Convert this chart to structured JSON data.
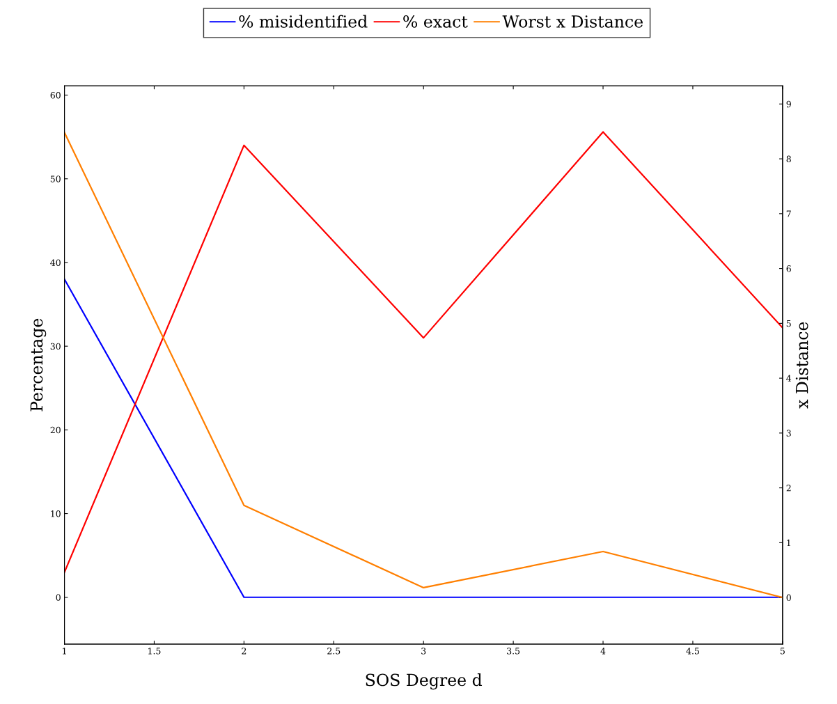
{
  "chart_data": {
    "type": "line",
    "xlabel": "SOS Degree d",
    "ylabel": "Percentage",
    "y2label": "x Distance",
    "x": [
      1,
      2,
      3,
      4,
      5
    ],
    "series": [
      {
        "name": "% misidentified",
        "color": "#0000ff",
        "values": [
          38,
          0,
          0,
          0,
          0
        ]
      },
      {
        "name": "% exact",
        "color": "#ff0000",
        "values": [
          3,
          54,
          31,
          55.6,
          32.2
        ]
      },
      {
        "name": "Worst x Distance",
        "color": "#ff7f00",
        "axis": "y2",
        "values": [
          8.48,
          1.68,
          0.18,
          0.84,
          0
        ]
      }
    ],
    "xlim": [
      1,
      5
    ],
    "xticks": [
      1,
      1.5,
      2,
      2.5,
      3,
      3.5,
      4,
      4.5,
      5
    ],
    "ylim": [
      -5.6,
      61.1
    ],
    "yticks": [
      0,
      10,
      20,
      30,
      40,
      50,
      60
    ],
    "y2lim": [
      -0.85,
      9.33
    ],
    "y2ticks": [
      0,
      1,
      2,
      3,
      4,
      5,
      6,
      7,
      8,
      9
    ],
    "legend": "top",
    "grid": false,
    "marker": "none",
    "line_style": "solid"
  }
}
